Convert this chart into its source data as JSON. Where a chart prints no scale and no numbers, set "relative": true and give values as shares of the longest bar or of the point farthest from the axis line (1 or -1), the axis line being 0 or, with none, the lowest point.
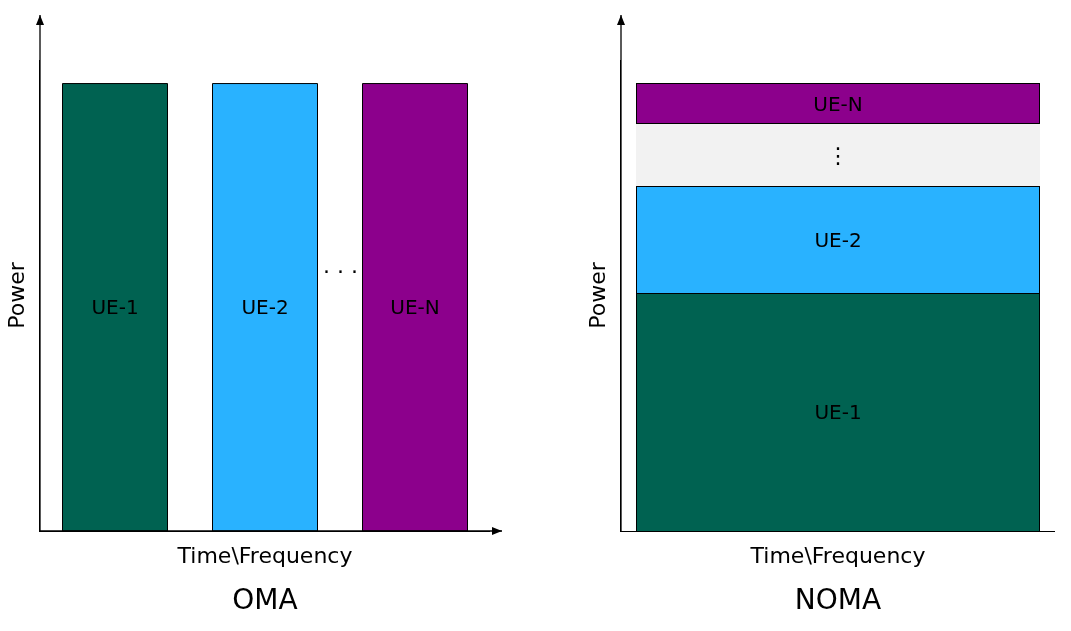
{
  "chart_data": [
    {
      "type": "bar",
      "title": "OMA",
      "xlabel": "Time\\Frequency",
      "ylabel": "Power",
      "categories": [
        "UE-1",
        "UE-2",
        "UE-N"
      ],
      "values": [
        1,
        1,
        1
      ],
      "colors": [
        "#006251",
        "#29b2ff",
        "#8c008c"
      ],
      "relative": true,
      "tick_labels": false,
      "annotations": [
        "· · ·"
      ]
    },
    {
      "type": "bar",
      "title": "NOMA",
      "xlabel": "Time\\Frequency",
      "ylabel": "Power",
      "categories": [
        null
      ],
      "relative": true,
      "stacked": true,
      "tick_labels": false,
      "annotations": [
        "⋮"
      ],
      "series": [
        {
          "name": "UE-1",
          "color": "#006251",
          "values": [
            0.53
          ]
        },
        {
          "name": "UE-2",
          "color": "#29b2ff",
          "values": [
            0.24
          ]
        },
        {
          "color": "#f2f2f2",
          "values": [
            0.14
          ]
        },
        {
          "name": "UE-N",
          "color": "#8c008c",
          "values": [
            0.09
          ]
        }
      ]
    }
  ]
}
